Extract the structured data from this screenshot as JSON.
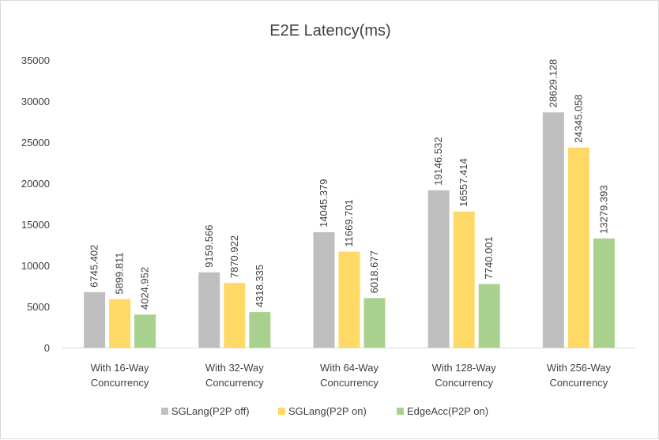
{
  "chart_data": {
    "type": "bar",
    "title": "E2E Latency(ms)",
    "xlabel": "",
    "ylabel": "",
    "ylim": [
      0,
      35000
    ],
    "yticks": [
      "0",
      "5000",
      "10000",
      "15000",
      "20000",
      "25000",
      "30000",
      "35000"
    ],
    "grid": false,
    "legend_position": "bottom",
    "categories": [
      [
        "With 16-Way",
        "Concurrency"
      ],
      [
        "With 32-Way",
        "Concurrency"
      ],
      [
        "With 64-Way",
        "Concurrency"
      ],
      [
        "With 128-Way",
        "Concurrency"
      ],
      [
        "With 256-Way",
        "Concurrency"
      ]
    ],
    "series": [
      {
        "name": "SGLang(P2P off)",
        "color": "#bfbfbf",
        "values": [
          6745.402,
          9159.566,
          14045.379,
          19146.532,
          28629.128
        ],
        "labels": [
          "6745.402",
          "9159.566",
          "14045.379",
          "19146.532",
          "28629.128"
        ]
      },
      {
        "name": "SGLang(P2P on)",
        "color": "#ffd966",
        "values": [
          5899.811,
          7870.922,
          11669.701,
          16557.414,
          24345.058
        ],
        "labels": [
          "5899.811",
          "7870.922",
          "11669.701",
          "16557.414",
          "24345.058"
        ]
      },
      {
        "name": "EdgeAcc(P2P on)",
        "color": "#a9d18e",
        "values": [
          4024.952,
          4318.335,
          6018.677,
          7740.001,
          13279.393
        ],
        "labels": [
          "4024.952",
          "4318.335",
          "6018.677",
          "7740.001",
          "13279.393"
        ]
      }
    ]
  }
}
